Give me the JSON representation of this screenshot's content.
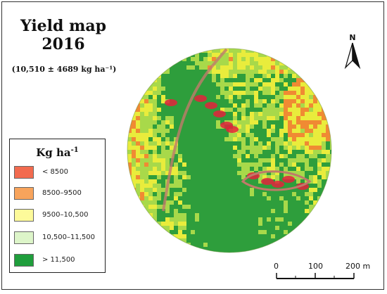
{
  "map": {
    "title_line1": "Yield map",
    "title_line2": "2016",
    "subtitle": "(10,510 ± 4689 kg ha⁻¹)",
    "north_label": "N"
  },
  "legend": {
    "title": "Kg ha",
    "title_sup": "-1",
    "classes": [
      {
        "label": "< 8500",
        "color": "#f26b4f"
      },
      {
        "label": "8500–9500",
        "color": "#f8a45c"
      },
      {
        "label": "9500–10,500",
        "color": "#fdfa9a"
      },
      {
        "label": "10,500–11,500",
        "color": "#ddf5c9"
      },
      {
        "label": "> 11,500",
        "color": "#1f9e3c"
      }
    ]
  },
  "scale": {
    "ticks": [
      "0",
      "100",
      "200 m"
    ]
  },
  "colors": {
    "low": "#e3223b",
    "orange": "#f08a33",
    "yellow": "#e9ec3c",
    "lightgreen": "#a8d94a",
    "green": "#2e9e3c"
  }
}
